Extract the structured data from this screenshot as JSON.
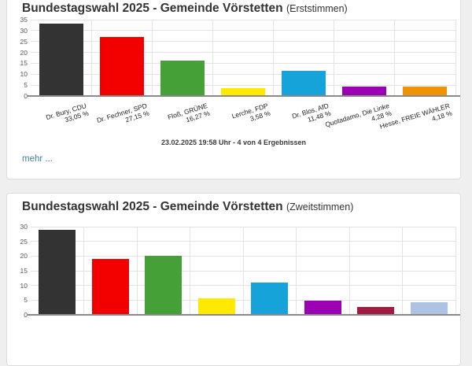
{
  "page_background": "#efefef",
  "card_erststimmen": {
    "title": "Bundestagswahl 2025 - Gemeinde Vörstetten",
    "title_suffix": "(Erststimmen)",
    "timestamp": "23.02.2025 19:58 Uhr - 4 von 4 Ergebnissen",
    "more_link": "mehr ..."
  },
  "card_zweitstimmen": {
    "title": "Bundestagswahl 2025 - Gemeinde Vörstetten",
    "title_suffix": "(Zweitstimmen)"
  },
  "chart_data": [
    {
      "type": "bar",
      "title": "Bundestagswahl 2025 - Gemeinde Vörstetten (Erststimmen)",
      "categories": [
        "Dr. Bury, CDU",
        "Dr. Fechner, SPD",
        "Floß, GRÜNE",
        "Lerche, FDP",
        "Dr. Blos, AfD",
        "Quotadamo, Die Linke",
        "Hesse, FREIE WÄHLER"
      ],
      "value_labels": [
        "33,05 %",
        "27,15 %",
        "16,27 %",
        "3,58 %",
        "11,48 %",
        "4,28 %",
        "4,18 %"
      ],
      "values": [
        33.05,
        27.15,
        16.27,
        3.58,
        11.48,
        4.28,
        4.18
      ],
      "bar_colors": [
        "#333333",
        "#f20000",
        "#45a038",
        "#ffe900",
        "#16a3da",
        "#9c00b5",
        "#ef9400"
      ],
      "xlabel": "",
      "ylabel": "",
      "ylim": [
        0,
        35
      ],
      "ytick_step": 5,
      "grid": true,
      "legend": false,
      "x_labels_visible": true
    },
    {
      "type": "bar",
      "title": "Bundestagswahl 2025 - Gemeinde Vörstetten (Zweitstimmen)",
      "categories": [
        "",
        "",
        "",
        "",
        "",
        "",
        "",
        ""
      ],
      "values": [
        29.0,
        18.9,
        20.2,
        5.6,
        11.1,
        4.8,
        2.7,
        4.4
      ],
      "bar_colors": [
        "#333333",
        "#f20000",
        "#45a038",
        "#ffe900",
        "#16a3da",
        "#9c00b5",
        "#a11a42",
        "#aec3e3"
      ],
      "xlabel": "",
      "ylabel": "",
      "ylim": [
        0,
        30
      ],
      "ytick_step": 5,
      "grid": true,
      "legend": false,
      "x_labels_visible": false
    }
  ]
}
